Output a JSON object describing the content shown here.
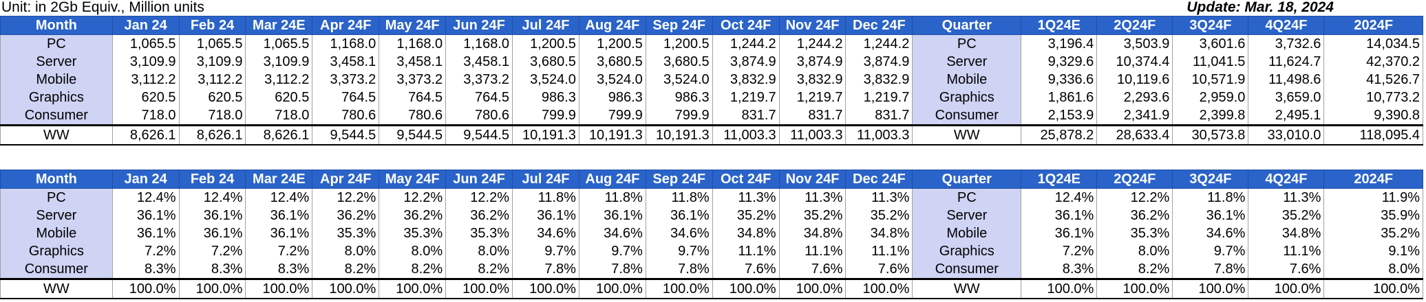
{
  "header": {
    "unit": "Unit: in 2Gb Equiv., Million units",
    "update": "Update: Mar. 18, 2024"
  },
  "months": [
    "Jan 24",
    "Feb 24",
    "Mar 24E",
    "Apr 24F",
    "May 24F",
    "Jun 24F",
    "Jul 24F",
    "Aug 24F",
    "Sep 24F",
    "Oct 24F",
    "Nov 24F",
    "Dec 24F"
  ],
  "quarters": [
    "1Q24E",
    "2Q24F",
    "3Q24F",
    "4Q24F",
    "2024F"
  ],
  "month_header": "Month",
  "quarter_header": "Quarter",
  "units_table": {
    "rows": [
      {
        "label": "PC",
        "monthly": [
          "1,065.5",
          "1,065.5",
          "1,065.5",
          "1,168.0",
          "1,168.0",
          "1,168.0",
          "1,200.5",
          "1,200.5",
          "1,200.5",
          "1,244.2",
          "1,244.2",
          "1,244.2"
        ],
        "quarter_label": "PC",
        "quarterly": [
          "3,196.4",
          "3,503.9",
          "3,601.6",
          "3,732.6",
          "14,034.5"
        ]
      },
      {
        "label": "Server",
        "monthly": [
          "3,109.9",
          "3,109.9",
          "3,109.9",
          "3,458.1",
          "3,458.1",
          "3,458.1",
          "3,680.5",
          "3,680.5",
          "3,680.5",
          "3,874.9",
          "3,874.9",
          "3,874.9"
        ],
        "quarter_label": "Server",
        "quarterly": [
          "9,329.6",
          "10,374.4",
          "11,041.5",
          "11,624.7",
          "42,370.2"
        ]
      },
      {
        "label": "Mobile",
        "monthly": [
          "3,112.2",
          "3,112.2",
          "3,112.2",
          "3,373.2",
          "3,373.2",
          "3,373.2",
          "3,524.0",
          "3,524.0",
          "3,524.0",
          "3,832.9",
          "3,832.9",
          "3,832.9"
        ],
        "quarter_label": "Mobile",
        "quarterly": [
          "9,336.6",
          "10,119.6",
          "10,571.9",
          "11,498.6",
          "41,526.7"
        ]
      },
      {
        "label": "Graphics",
        "monthly": [
          "620.5",
          "620.5",
          "620.5",
          "764.5",
          "764.5",
          "764.5",
          "986.3",
          "986.3",
          "986.3",
          "1,219.7",
          "1,219.7",
          "1,219.7"
        ],
        "quarter_label": "Graphics",
        "quarterly": [
          "1,861.6",
          "2,293.6",
          "2,959.0",
          "3,659.0",
          "10,773.2"
        ]
      },
      {
        "label": "Consumer",
        "monthly": [
          "718.0",
          "718.0",
          "718.0",
          "780.6",
          "780.6",
          "780.6",
          "799.9",
          "799.9",
          "799.9",
          "831.7",
          "831.7",
          "831.7"
        ],
        "quarter_label": "Consumer",
        "quarterly": [
          "2,153.9",
          "2,341.9",
          "2,399.8",
          "2,495.1",
          "9,390.8"
        ]
      },
      {
        "label": "WW",
        "monthly": [
          "8,626.1",
          "8,626.1",
          "8,626.1",
          "9,544.5",
          "9,544.5",
          "9,544.5",
          "10,191.3",
          "10,191.3",
          "10,191.3",
          "11,003.3",
          "11,003.3",
          "11,003.3"
        ],
        "quarter_label": "WW",
        "quarterly": [
          "25,878.2",
          "28,633.4",
          "30,573.8",
          "33,010.0",
          "118,095.4"
        ]
      }
    ]
  },
  "share_table": {
    "rows": [
      {
        "label": "PC",
        "monthly": [
          "12.4%",
          "12.4%",
          "12.4%",
          "12.2%",
          "12.2%",
          "12.2%",
          "11.8%",
          "11.8%",
          "11.8%",
          "11.3%",
          "11.3%",
          "11.3%"
        ],
        "quarter_label": "PC",
        "quarterly": [
          "12.4%",
          "12.2%",
          "11.8%",
          "11.3%",
          "11.9%"
        ]
      },
      {
        "label": "Server",
        "monthly": [
          "36.1%",
          "36.1%",
          "36.1%",
          "36.2%",
          "36.2%",
          "36.2%",
          "36.1%",
          "36.1%",
          "36.1%",
          "35.2%",
          "35.2%",
          "35.2%"
        ],
        "quarter_label": "Server",
        "quarterly": [
          "36.1%",
          "36.2%",
          "36.1%",
          "35.2%",
          "35.9%"
        ]
      },
      {
        "label": "Mobile",
        "monthly": [
          "36.1%",
          "36.1%",
          "36.1%",
          "35.3%",
          "35.3%",
          "35.3%",
          "34.6%",
          "34.6%",
          "34.6%",
          "34.8%",
          "34.8%",
          "34.8%"
        ],
        "quarter_label": "Mobile",
        "quarterly": [
          "36.1%",
          "35.3%",
          "34.6%",
          "34.8%",
          "35.2%"
        ]
      },
      {
        "label": "Graphics",
        "monthly": [
          "7.2%",
          "7.2%",
          "7.2%",
          "8.0%",
          "8.0%",
          "8.0%",
          "9.7%",
          "9.7%",
          "9.7%",
          "11.1%",
          "11.1%",
          "11.1%"
        ],
        "quarter_label": "Graphics",
        "quarterly": [
          "7.2%",
          "8.0%",
          "9.7%",
          "11.1%",
          "9.1%"
        ]
      },
      {
        "label": "Consumer",
        "monthly": [
          "8.3%",
          "8.3%",
          "8.3%",
          "8.2%",
          "8.2%",
          "8.2%",
          "7.8%",
          "7.8%",
          "7.8%",
          "7.6%",
          "7.6%",
          "7.6%"
        ],
        "quarter_label": "Consumer",
        "quarterly": [
          "8.3%",
          "8.2%",
          "7.8%",
          "7.6%",
          "8.0%"
        ]
      },
      {
        "label": "WW",
        "monthly": [
          "100.0%",
          "100.0%",
          "100.0%",
          "100.0%",
          "100.0%",
          "100.0%",
          "100.0%",
          "100.0%",
          "100.0%",
          "100.0%",
          "100.0%",
          "100.0%"
        ],
        "quarter_label": "WW",
        "quarterly": [
          "100.0%",
          "100.0%",
          "100.0%",
          "100.0%",
          "100.0%"
        ]
      }
    ]
  },
  "colors": {
    "header_bg": "#2a63c9",
    "label_bg": "#cfd3f4"
  }
}
